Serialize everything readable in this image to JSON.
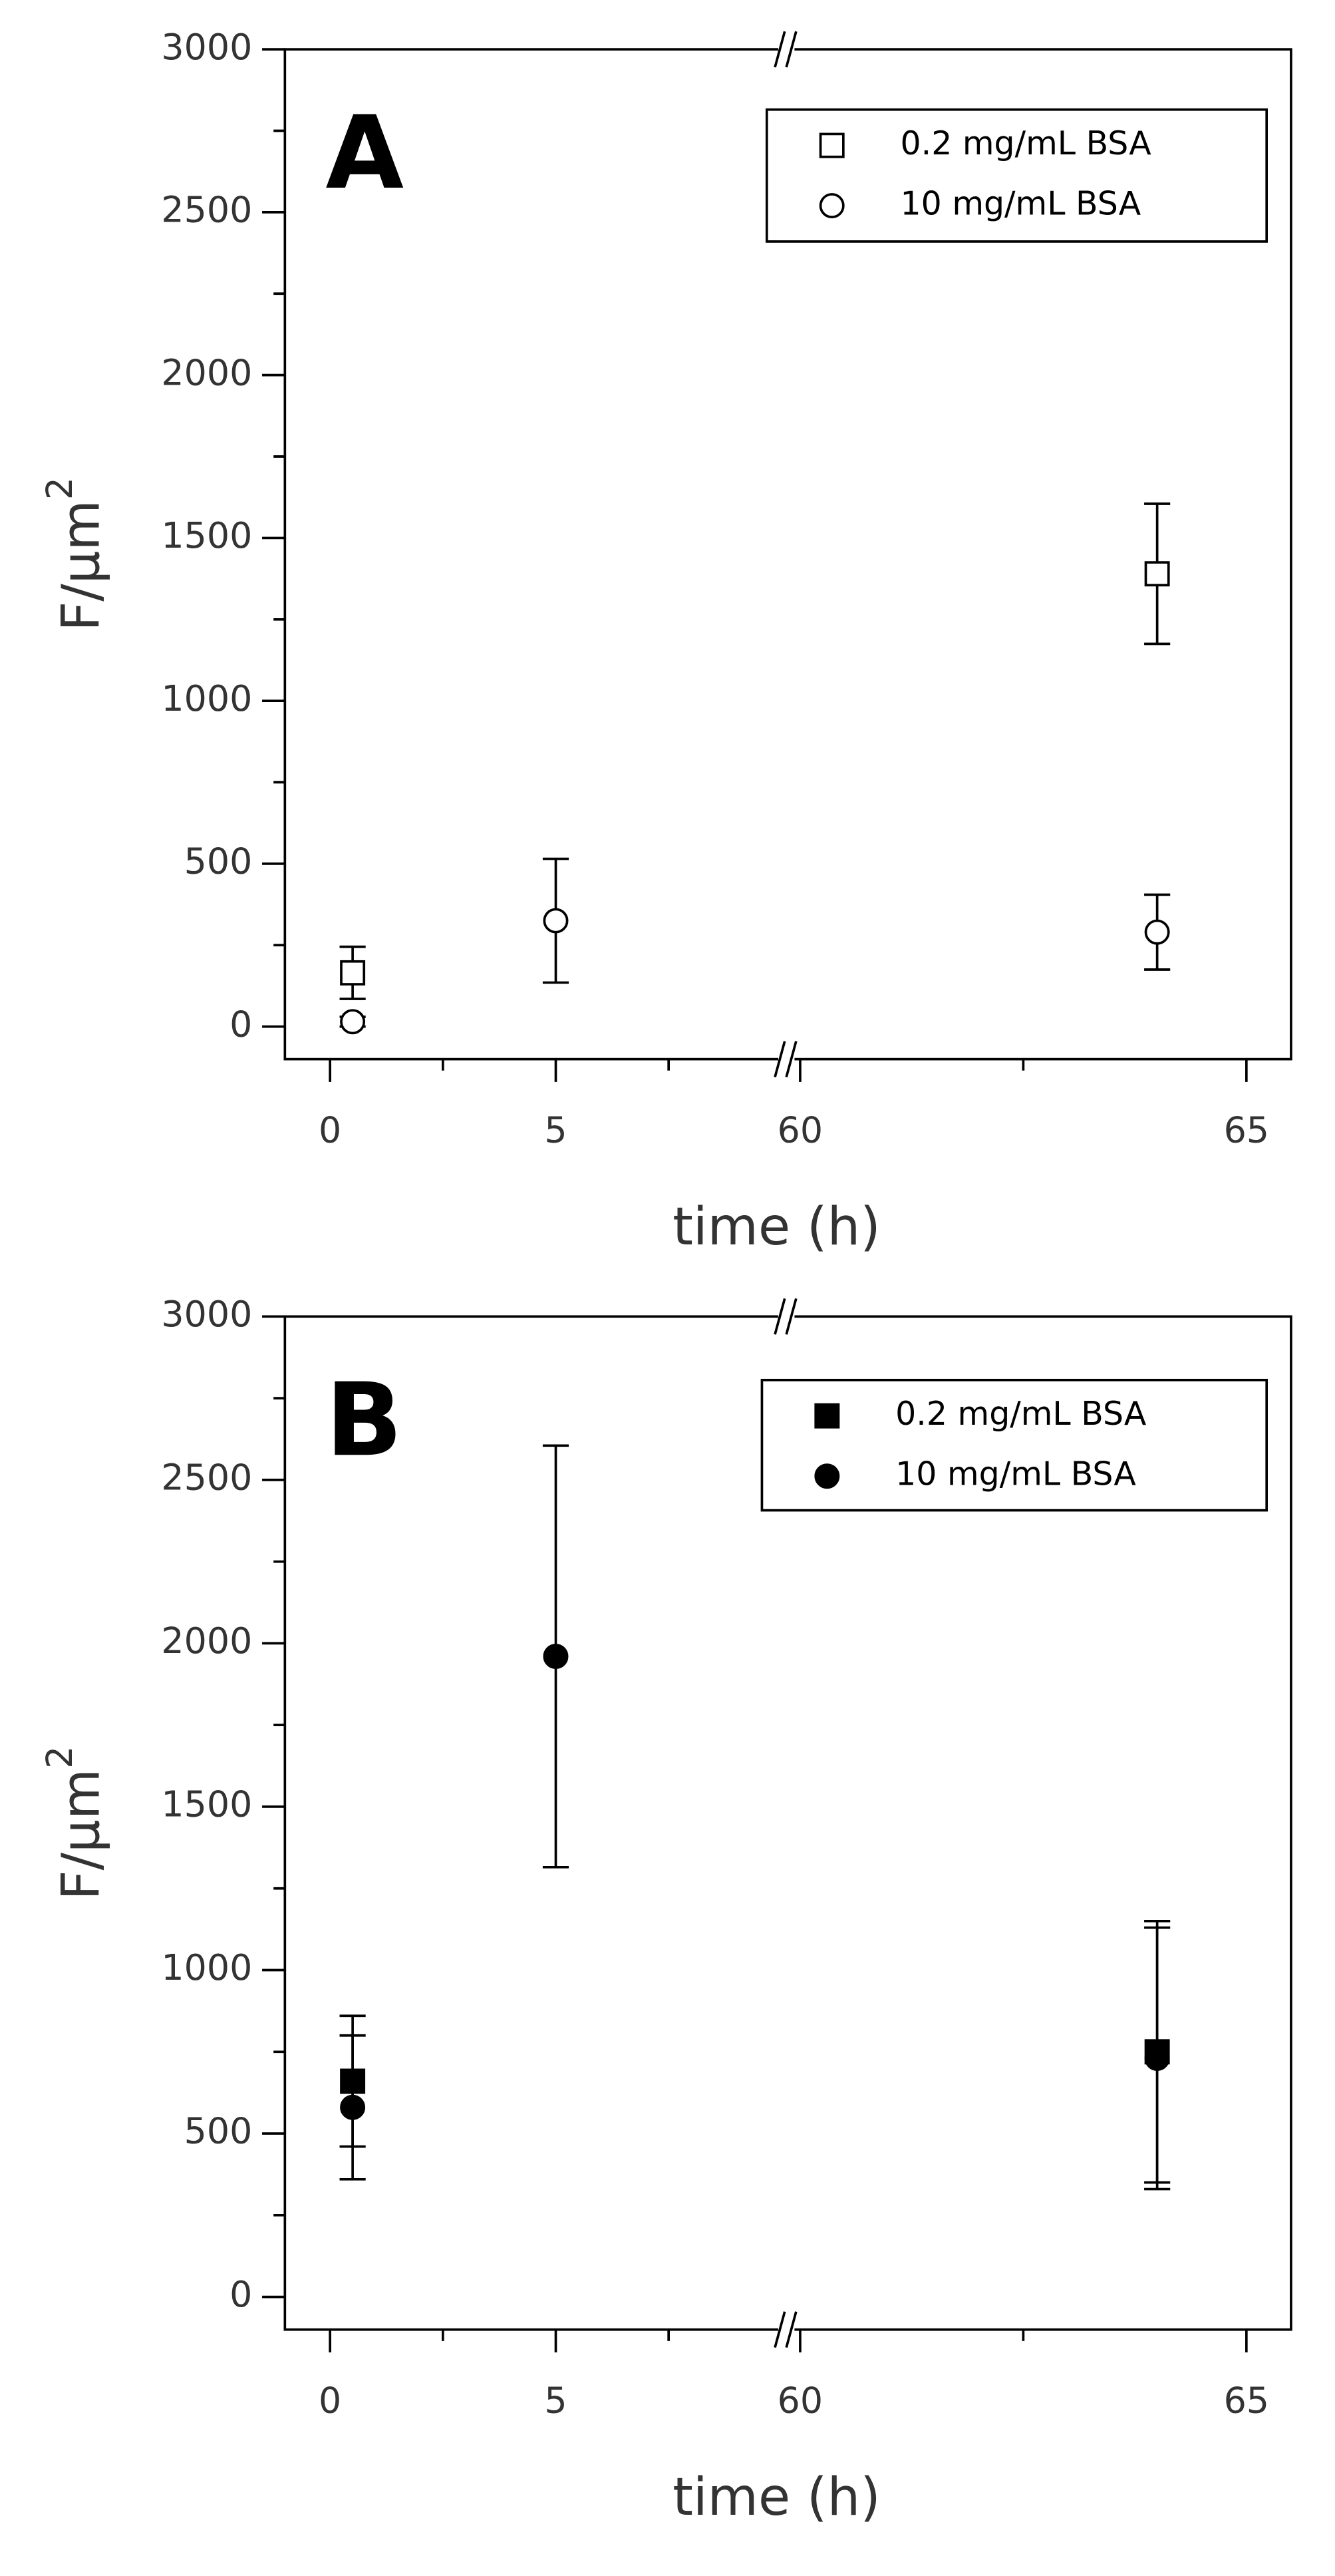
{
  "chart_data": [
    {
      "type": "scatter",
      "panel_label": "A",
      "ylabel": "F/μm",
      "ylabel_sup": "2",
      "xlabel": "time (h)",
      "ylim": [
        -100,
        3000
      ],
      "yticks": [
        0,
        500,
        1000,
        1500,
        2000,
        2500,
        3000
      ],
      "yminorticks": [
        250,
        750,
        1250,
        1750,
        2250,
        2750
      ],
      "x_segments": [
        {
          "xlim": [
            -1,
            10
          ],
          "xticks": [
            0,
            5
          ],
          "xminorticks": [
            2.5,
            7.5
          ]
        },
        {
          "xlim": [
            59.9,
            65.5
          ],
          "xticks": [
            60,
            65
          ],
          "xminorticks": [
            62.5
          ]
        }
      ],
      "series": [
        {
          "name": "0.2 mg/mL BSA",
          "marker": "square",
          "filled": false,
          "color": "#000000",
          "x": [
            0.5,
            64
          ],
          "values": [
            165,
            1390
          ],
          "errors": [
            80,
            215
          ]
        },
        {
          "name": "10 mg/mL BSA",
          "marker": "circle",
          "filled": false,
          "color": "#000000",
          "x": [
            0.5,
            5,
            64
          ],
          "values": [
            15,
            325,
            290
          ],
          "errors": [
            15,
            190,
            115
          ]
        }
      ]
    },
    {
      "type": "scatter",
      "panel_label": "B",
      "ylabel": "F/μm",
      "ylabel_sup": "2",
      "xlabel": "time (h)",
      "ylim": [
        -100,
        3000
      ],
      "yticks": [
        0,
        500,
        1000,
        1500,
        2000,
        2500,
        3000
      ],
      "yminorticks": [
        250,
        750,
        1250,
        1750,
        2250,
        2750
      ],
      "x_segments": [
        {
          "xlim": [
            -1,
            10
          ],
          "xticks": [
            0,
            5
          ],
          "xminorticks": [
            2.5,
            7.5
          ]
        },
        {
          "xlim": [
            59.9,
            65.5
          ],
          "xticks": [
            60,
            65
          ],
          "xminorticks": [
            62.5
          ]
        }
      ],
      "series": [
        {
          "name": "0.2 mg/mL BSA",
          "marker": "square",
          "filled": true,
          "color": "#000000",
          "x": [
            0.5,
            64
          ],
          "values": [
            660,
            750
          ],
          "errors": [
            200,
            400
          ]
        },
        {
          "name": "10 mg/mL BSA",
          "marker": "circle",
          "filled": true,
          "color": "#000000",
          "x": [
            0.5,
            5,
            64
          ],
          "values": [
            580,
            1960,
            730
          ],
          "errors": [
            220,
            645,
            400
          ]
        }
      ]
    }
  ]
}
